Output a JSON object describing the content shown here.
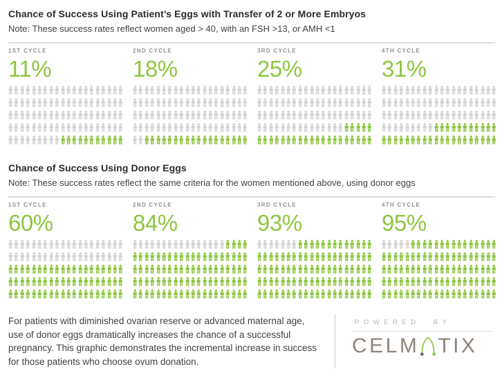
{
  "colors": {
    "green": "#8dc63f",
    "icon_gray": "#d2d2d2",
    "title": "#2b2b2b",
    "body_text": "#414042",
    "label_gray": "#8e9093",
    "rule_gray": "#dcdcdc",
    "powered_gray": "#b3b3b3",
    "logo_taupe": "#8d8379",
    "divider": "#c8c8c8",
    "dot_dark": "#6e6a62"
  },
  "chart_data": [
    {
      "type": "pictograph",
      "title": "Chance of Success Using Patient’s Eggs with Transfer of 2 or More Embryos",
      "subtitle": "Note: These success rates reflect women aged > 40, with an FSH >13, or AMH <1",
      "categories": [
        "1ST CYCLE",
        "2ND CYCLE",
        "3RD CYCLE",
        "4TH CYCLE"
      ],
      "values": [
        11,
        18,
        25,
        31
      ],
      "unit": "%",
      "icons_per_chart": 100,
      "icons_per_row": 20,
      "icon": "person",
      "fill_order": "bottom-right",
      "legend_position": "none",
      "value_label_format": "large-green-percent"
    },
    {
      "type": "pictograph",
      "title": "Chance of Success Using Donor Eggs",
      "subtitle": "Note: These success rates reflect the same criteria for the women mentioned above, using donor eggs",
      "categories": [
        "1ST CYCLE",
        "2ND CYCLE",
        "3RD CYCLE",
        "4TH CYCLE"
      ],
      "values": [
        60,
        84,
        93,
        95
      ],
      "unit": "%",
      "icons_per_chart": 100,
      "icons_per_row": 20,
      "icon": "person",
      "fill_order": "bottom-right",
      "legend_position": "none",
      "value_label_format": "large-green-percent"
    }
  ],
  "footer": {
    "paragraph": "For patients with diminished ovarian reserve or advanced maternal age, use of donor eggs dramatically increases the chance of a successful pregnancy. This graphic demonstrates the incremental increase in success for those patients who choose ovum donation.",
    "powered_by": "POWERED BY",
    "brand": "CELMATIX",
    "brand_left": "CELM",
    "brand_right": "TIX"
  }
}
